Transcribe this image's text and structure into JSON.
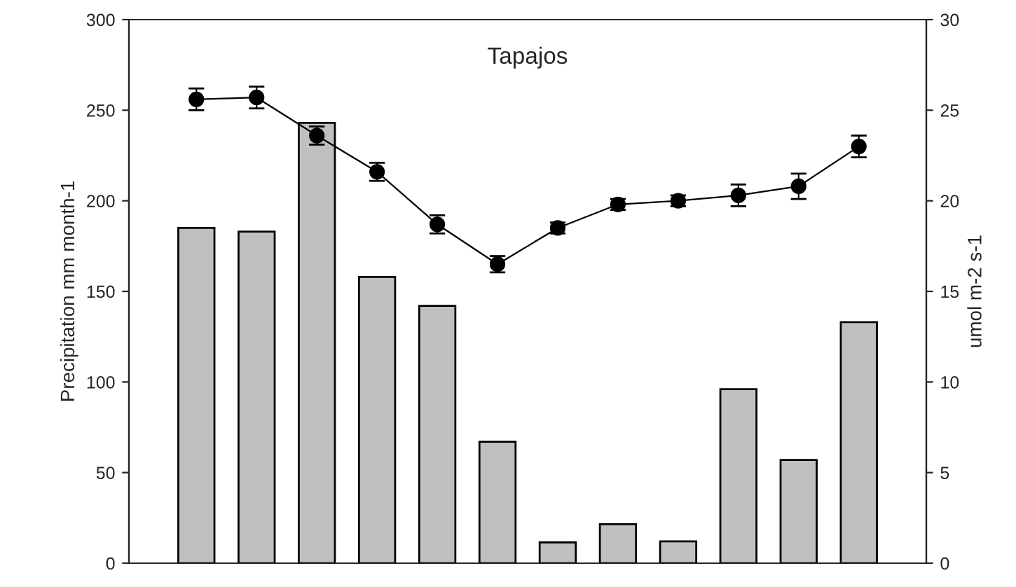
{
  "chart_data": {
    "type": "bar",
    "title": "Tapajos",
    "ylabel": "Precipitation mm month-1",
    "y2label": "umol m-2 s-1",
    "categories": [
      null,
      null,
      null,
      null,
      null,
      null,
      null,
      null,
      null,
      null,
      null,
      null
    ],
    "series": [
      {
        "color": "#c0c0c0",
        "values": [
          185,
          183,
          243,
          158,
          142,
          67,
          11.5,
          21.5,
          12,
          96,
          57,
          133
        ]
      },
      {
        "type": "line",
        "axis": "y2",
        "color": "#000000",
        "marker": "circle",
        "values": [
          25.6,
          25.7,
          23.6,
          21.6,
          18.7,
          16.5,
          18.5,
          19.8,
          20.0,
          20.3,
          20.8,
          23.0
        ],
        "errors": [
          0.6,
          0.6,
          0.5,
          0.5,
          0.5,
          0.45,
          0.3,
          0.3,
          0.3,
          0.6,
          0.7,
          0.6
        ]
      }
    ],
    "ylim": [
      0,
      300
    ],
    "yticks": [
      0,
      50,
      100,
      150,
      200,
      250,
      300
    ],
    "y2lim": [
      0,
      30
    ],
    "y2ticks": [
      0,
      5,
      10,
      15,
      20,
      25,
      30
    ],
    "tick_labels": "y",
    "grid": false
  }
}
